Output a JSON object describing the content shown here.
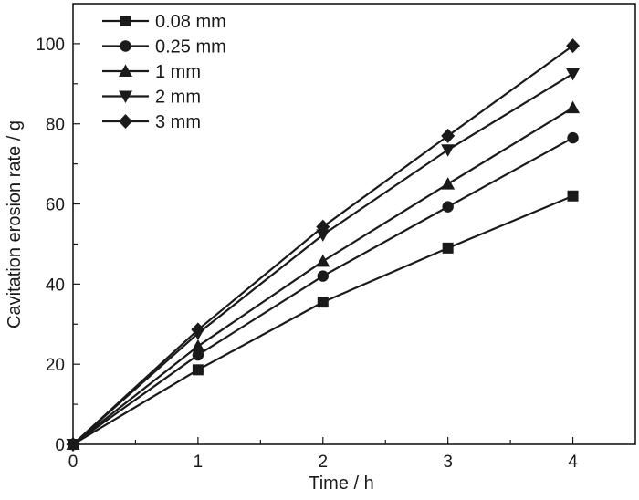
{
  "chart_data": {
    "type": "line",
    "title": "",
    "xlabel": "Time / h",
    "ylabel": "Cavitation erosion rate / g",
    "xlim": [
      0,
      4.5
    ],
    "ylim": [
      0,
      110
    ],
    "x_ticks": [
      0,
      1,
      2,
      3,
      4
    ],
    "x_tick_labels": [
      "0",
      "1",
      "2",
      "3",
      "4"
    ],
    "y_ticks": [
      0,
      20,
      40,
      60,
      80,
      100
    ],
    "y_tick_labels": [
      "0",
      "20",
      "40",
      "60",
      "80",
      "100"
    ],
    "grid": false,
    "legend_position": "top-left",
    "x": [
      0,
      1,
      2,
      3,
      4
    ],
    "series": [
      {
        "name": "0.08 mm",
        "marker": "square",
        "values": [
          0,
          18.6,
          35.5,
          49.0,
          62.0
        ]
      },
      {
        "name": "0.25 mm",
        "marker": "circle",
        "values": [
          0,
          22.3,
          42.0,
          59.3,
          76.5
        ]
      },
      {
        "name": "1 mm",
        "marker": "triangle-up",
        "values": [
          0,
          24.5,
          45.7,
          65.0,
          84.0
        ]
      },
      {
        "name": "2 mm",
        "marker": "triangle-down",
        "values": [
          0,
          27.7,
          52.3,
          73.5,
          92.5
        ]
      },
      {
        "name": "3 mm",
        "marker": "diamond",
        "values": [
          0,
          28.6,
          54.3,
          77.0,
          99.5
        ]
      }
    ],
    "line_color": "#1a1a1a"
  }
}
